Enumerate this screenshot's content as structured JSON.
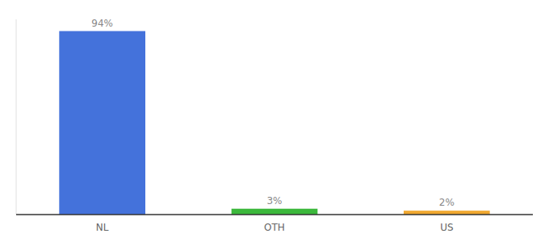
{
  "chart_data": {
    "type": "bar",
    "categories": [
      "NL",
      "OTH",
      "US"
    ],
    "values": [
      94,
      3,
      2
    ],
    "value_labels": [
      "94%",
      "3%",
      "2%"
    ],
    "colors": [
      "#4472db",
      "#3cb83c",
      "#f0a830"
    ],
    "ylim": [
      0,
      100
    ],
    "data_labels": true,
    "tick_labels": "x",
    "grid": false
  }
}
